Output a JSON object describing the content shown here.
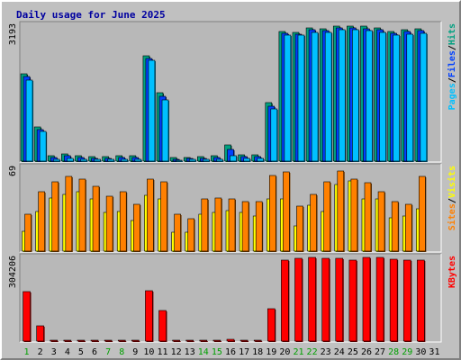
{
  "chart_data": {
    "type": "bar",
    "title": "Daily usage for June 2025",
    "categories": [
      "1",
      "2",
      "3",
      "4",
      "5",
      "6",
      "7",
      "8",
      "9",
      "10",
      "11",
      "12",
      "13",
      "14",
      "15",
      "16",
      "17",
      "18",
      "19",
      "20",
      "21",
      "22",
      "23",
      "24",
      "25",
      "26",
      "27",
      "28",
      "29",
      "30",
      "31"
    ],
    "weekend_days": [
      "1",
      "7",
      "8",
      "14",
      "15",
      "21",
      "22",
      "28",
      "29"
    ],
    "panels": [
      {
        "max_label": "3193",
        "axis_labels": [
          "Pages",
          "Files",
          "Hits"
        ],
        "axis_label_colors": [
          "#00c0ff",
          "#0040ff",
          "#00a080"
        ],
        "series": [
          {
            "name": "Hits",
            "color": "#00a080",
            "values": [
              2030,
              790,
              120,
              165,
              115,
              105,
              100,
              120,
              120,
              2450,
              1580,
              75,
              85,
              100,
              125,
              370,
              150,
              150,
              1350,
              3000,
              2980,
              3080,
              3070,
              3120,
              3140,
              3120,
              3080,
              3000,
              3040,
              3060,
              null
            ]
          },
          {
            "name": "Files",
            "color": "#0040ff",
            "values": [
              1970,
              740,
              80,
              120,
              80,
              70,
              70,
              80,
              80,
              2380,
              1500,
              50,
              60,
              70,
              90,
              270,
              110,
              110,
              1280,
              2960,
              2950,
              3040,
              3030,
              3080,
              3090,
              3070,
              3040,
              2960,
              3000,
              3020,
              null
            ]
          },
          {
            "name": "Pages",
            "color": "#00c0ff",
            "values": [
              1880,
              680,
              40,
              70,
              40,
              40,
              40,
              50,
              50,
              2330,
              1420,
              30,
              40,
              40,
              50,
              120,
              70,
              60,
              1210,
              2920,
              2920,
              2990,
              2990,
              3050,
              3050,
              3030,
              2990,
              2920,
              2950,
              2970,
              null
            ]
          }
        ]
      },
      {
        "max_label": "69",
        "axis_labels": [
          "Sites",
          "Visits"
        ],
        "axis_label_colors": [
          "#ff8000",
          "#ffff00"
        ],
        "series": [
          {
            "name": "Visits",
            "color": "#ffff00",
            "values": [
              16,
              32,
              43,
              46,
              48,
              42,
              31,
              32,
              25,
              45,
              42,
              15,
              15,
              30,
              31,
              33,
              31,
              28,
              42,
              42,
              20,
              37,
              32,
              54,
              57,
              42,
              42,
              27,
              28,
              34,
              null
            ]
          },
          {
            "name": "Sites",
            "color": "#ff8000",
            "values": [
              30,
              48,
              56,
              60,
              58,
              52,
              44,
              48,
              38,
              58,
              56,
              30,
              26,
              42,
              43,
              42,
              40,
              40,
              61,
              64,
              36,
              46,
              56,
              65,
              58,
              55,
              48,
              40,
              38,
              60,
              null
            ]
          }
        ]
      },
      {
        "max_label": "304206",
        "axis_labels": [
          "KBytes"
        ],
        "axis_label_colors": [
          "#ff0000"
        ],
        "series": [
          {
            "name": "KBytes",
            "color": "#ff0000",
            "values": [
              175000,
              56000,
              2000,
              2000,
              2000,
              2000,
              2000,
              2000,
              2000,
              178000,
              110000,
              2000,
              2000,
              2000,
              2000,
              6000,
              2000,
              2000,
              115000,
              287000,
              293000,
              297000,
              295000,
              293000,
              287000,
              297000,
              297000,
              290000,
              289000,
              287000,
              null
            ]
          }
        ]
      }
    ]
  }
}
